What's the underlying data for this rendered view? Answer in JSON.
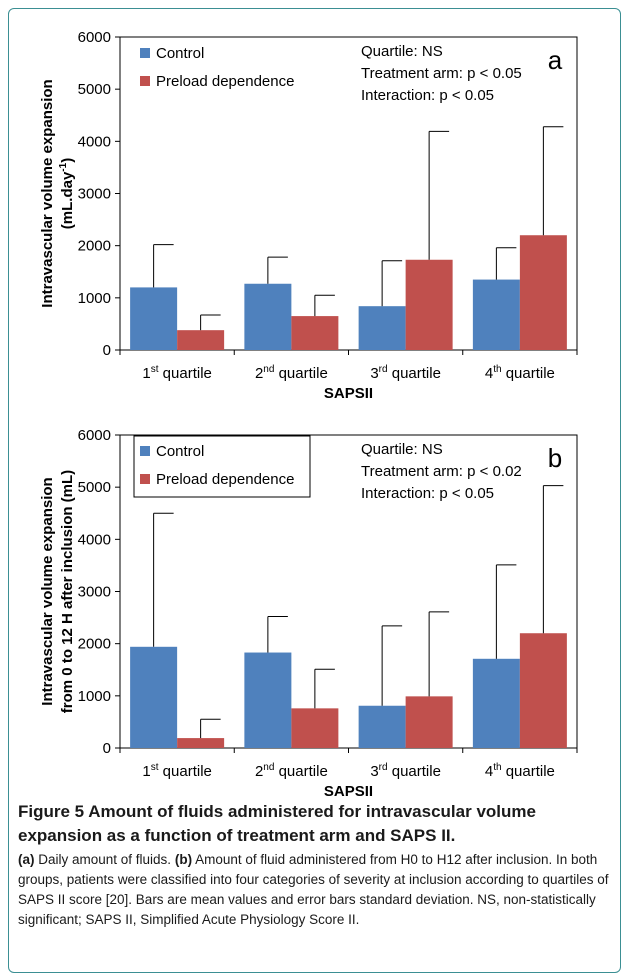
{
  "charts": [
    {
      "type": "bar",
      "panel_letter": "a",
      "categories": [
        {
          "base": "1",
          "sup": "st",
          "rest": " quartile"
        },
        {
          "base": "2",
          "sup": "nd",
          "rest": " quartile"
        },
        {
          "base": "3",
          "sup": "rd",
          "rest": " quartile"
        },
        {
          "base": "4",
          "sup": "th",
          "rest": " quartile"
        }
      ],
      "series": [
        {
          "name": "Control",
          "color": "#4f81bd",
          "values": [
            1200,
            1270,
            840,
            1350
          ],
          "errors": [
            820,
            510,
            870,
            610
          ]
        },
        {
          "name": "Preload dependence",
          "color": "#c0504d",
          "values": [
            380,
            650,
            1730,
            2200
          ],
          "errors": [
            290,
            400,
            2460,
            2080
          ]
        }
      ],
      "ylabel_lines": [
        "Intravascular volume expansion",
        "(mL.day"
      ],
      "ylabel_sup": "-1",
      "ylabel_close": ")",
      "xlabel": "SAPSII",
      "ylim": [
        0,
        6000
      ],
      "yticks": [
        0,
        1000,
        2000,
        3000,
        4000,
        5000,
        6000
      ],
      "annotations": [
        "Quartile: NS",
        "Treatment arm: p < 0.05",
        "Interaction: p < 0.05"
      ],
      "legend_placement": "top-left",
      "legend_border": false,
      "grid": false
    },
    {
      "type": "bar",
      "panel_letter": "b",
      "categories": [
        {
          "base": "1",
          "sup": "st",
          "rest": " quartile"
        },
        {
          "base": "2",
          "sup": "nd",
          "rest": " quartile"
        },
        {
          "base": "3",
          "sup": "rd",
          "rest": " quartile"
        },
        {
          "base": "4",
          "sup": "th",
          "rest": " quartile"
        }
      ],
      "series": [
        {
          "name": "Control",
          "color": "#4f81bd",
          "values": [
            1940,
            1830,
            810,
            1710
          ],
          "errors": [
            2560,
            690,
            1530,
            1800
          ]
        },
        {
          "name": "Preload dependence",
          "color": "#c0504d",
          "values": [
            190,
            760,
            990,
            2200
          ],
          "errors": [
            360,
            750,
            1620,
            2830
          ]
        }
      ],
      "ylabel_lines": [
        "Intravascular volume expansion",
        "from 0 to 12 H after inclusion (mL)"
      ],
      "ylabel_sup": "",
      "ylabel_close": "",
      "xlabel": "SAPSII",
      "ylim": [
        0,
        6000
      ],
      "yticks": [
        0,
        1000,
        2000,
        3000,
        4000,
        5000,
        6000
      ],
      "annotations": [
        "Quartile: NS",
        "Treatment arm: p < 0.02",
        "Interaction: p < 0.05"
      ],
      "legend_placement": "top-left",
      "legend_border": true,
      "grid": false
    }
  ],
  "caption": {
    "title": "Figure 5 Amount of fluids administered for intravascular volume expansion as a function of treatment arm and SAPS II.",
    "part_a_label": "(a)",
    "part_a_text": " Daily amount of fluids. ",
    "part_b_label": "(b)",
    "part_b_text": " Amount of fluid administered from H0 to H12 after inclusion. In both groups, patients were classified into four categories of severity at inclusion according to quartiles of SAPS II score [20]. Bars are mean values and error bars standard deviation. NS, non-statistically significant; SAPS II, Simplified Acute Physiology Score II."
  }
}
